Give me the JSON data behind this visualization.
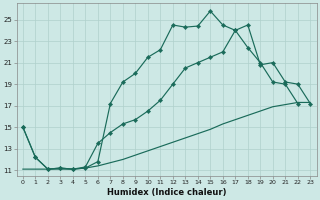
{
  "xlabel": "Humidex (Indice chaleur)",
  "ylabel": "",
  "bg_color": "#cde8e5",
  "grid_color": "#b0d0cc",
  "line_color": "#1a6b5a",
  "xlim_min": -0.5,
  "xlim_max": 23.5,
  "ylim_min": 10.5,
  "ylim_max": 26.5,
  "xticks": [
    0,
    1,
    2,
    3,
    4,
    5,
    6,
    7,
    8,
    9,
    10,
    11,
    12,
    13,
    14,
    15,
    16,
    17,
    18,
    19,
    20,
    21,
    22,
    23
  ],
  "yticks": [
    11,
    13,
    15,
    17,
    19,
    21,
    23,
    25
  ],
  "line1_x": [
    0,
    1,
    2,
    3,
    4,
    5,
    6,
    7,
    8,
    9,
    10,
    11,
    12,
    13,
    14,
    15,
    16,
    17,
    18,
    19,
    20,
    21,
    22,
    23
  ],
  "line1_y": [
    15.0,
    12.2,
    11.1,
    11.2,
    11.1,
    11.2,
    11.8,
    17.2,
    19.2,
    20.0,
    21.5,
    22.2,
    24.5,
    24.3,
    24.4,
    25.8,
    24.5,
    24.0,
    22.4,
    21.0,
    19.2,
    19.0,
    17.2,
    null
  ],
  "line2_x": [
    0,
    1,
    2,
    3,
    4,
    5,
    6,
    7,
    8,
    9,
    10,
    11,
    12,
    13,
    14,
    15,
    16,
    17,
    18,
    19,
    20,
    21,
    22,
    23
  ],
  "line2_y": [
    15.0,
    12.2,
    11.1,
    11.2,
    11.1,
    11.3,
    13.5,
    14.5,
    15.3,
    15.7,
    16.5,
    17.5,
    19.0,
    20.5,
    21.0,
    21.5,
    22.0,
    24.0,
    24.5,
    20.8,
    21.0,
    19.2,
    19.0,
    17.2
  ],
  "line3_x": [
    0,
    1,
    2,
    3,
    4,
    5,
    6,
    7,
    8,
    9,
    10,
    11,
    12,
    13,
    14,
    15,
    16,
    17,
    18,
    19,
    20,
    21,
    22,
    23
  ],
  "line3_y": [
    11.1,
    11.1,
    11.1,
    11.1,
    11.1,
    11.2,
    11.4,
    11.7,
    12.0,
    12.4,
    12.8,
    13.2,
    13.6,
    14.0,
    14.4,
    14.8,
    15.3,
    15.7,
    16.1,
    16.5,
    16.9,
    17.1,
    17.3,
    17.3
  ]
}
